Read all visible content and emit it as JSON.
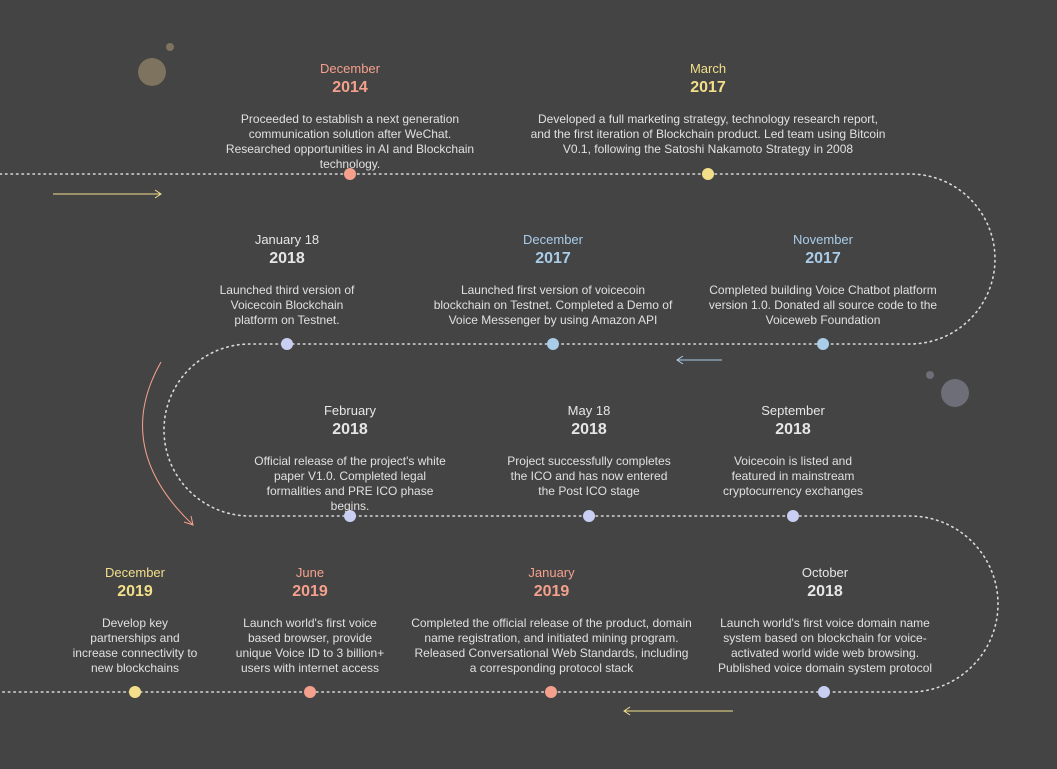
{
  "colors": {
    "background": "#444444",
    "path": "#d9d9d9",
    "text": "#e6e6e6",
    "salmon": "#f4a08c",
    "yellow": "#f3df8a",
    "blue": "#a9cce9",
    "lavender": "#c9cff2",
    "white": "#e6e6e6"
  },
  "events": [
    {
      "month": "December",
      "year": "2014",
      "color": "salmon",
      "description": "Proceeded to establish a next generation communication solution after WeChat. Researched opportunities in AI and Blockchain technology."
    },
    {
      "month": "March",
      "year": "2017",
      "color": "yellow",
      "description": "Developed a full marketing strategy, technology research report, and the first iteration of Blockchain product. Led team using Bitcoin V0.1, following the Satoshi Nakamoto Strategy in 2008"
    },
    {
      "month": "November",
      "year": "2017",
      "color": "blue",
      "description": "Completed building Voice Chatbot platform version 1.0. Donated all source code to the Voiceweb Foundation"
    },
    {
      "month": "December",
      "year": "2017",
      "color": "blue",
      "description": "Launched first version of voicecoin blockchain on Testnet. Completed a Demo of Voice Messenger by using Amazon API"
    },
    {
      "month": "January 18",
      "year": "2018",
      "color": "white",
      "description": "Launched third version of Voicecoin Blockchain platform on Testnet."
    },
    {
      "month": "February",
      "year": "2018",
      "color": "white",
      "description": "Official release of the project's white paper V1.0. Completed legal formalities and PRE ICO phase begins."
    },
    {
      "month": "May 18",
      "year": "2018",
      "color": "white",
      "description": "Project successfully completes the ICO and has now entered the Post ICO stage"
    },
    {
      "month": "September",
      "year": "2018",
      "color": "white",
      "description": "Voicecoin is listed and featured in mainstream cryptocurrency exchanges"
    },
    {
      "month": "October",
      "year": "2018",
      "color": "white",
      "description": "Launch world's first voice domain name system based on blockchain for voice-activated world wide web browsing. Published voice domain system protocol"
    },
    {
      "month": "January",
      "year": "2019",
      "color": "salmon",
      "description": "Completed the official release of the product, domain name registration, and initiated mining program. Released Conversational Web Standards, including a corresponding protocol stack"
    },
    {
      "month": "June",
      "year": "2019",
      "color": "salmon",
      "description": "Launch world's first voice based browser, provide unique Voice ID to 3 billion+ users with internet access"
    },
    {
      "month": "December",
      "year": "2019",
      "color": "yellow",
      "description": "Develop key partnerships and increase connectivity to new blockchains"
    }
  ]
}
